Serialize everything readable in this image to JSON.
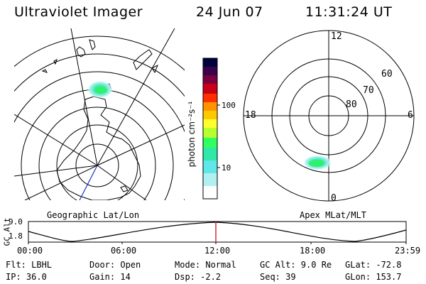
{
  "header": {
    "title": "Ultraviolet Imager",
    "date": "24 Jun 07",
    "time": "11:31:24 UT"
  },
  "geo_map": {
    "label": "Geographic Lat/Lon"
  },
  "polar_map": {
    "label": "Apex MLat/MLT",
    "mlt_labels": [
      "12",
      "18",
      "6",
      "0"
    ],
    "mlat_labels": [
      "60",
      "70",
      "80"
    ]
  },
  "colorbar": {
    "unit_label": "photon cm⁻²s⁻¹",
    "ticks": [
      "100",
      "10"
    ],
    "colors": [
      "#000040",
      "#3b004a",
      "#7b0040",
      "#c80018",
      "#ff3000",
      "#ff9400",
      "#ffc800",
      "#ffff30",
      "#b8ff30",
      "#30ff60",
      "#30e8a8",
      "#60e8e8",
      "#b0f0f0",
      "#ffffff"
    ]
  },
  "timeline": {
    "axis_label": "GC Alt",
    "y_ticks": [
      "9.0",
      "1.8"
    ],
    "x_ticks": [
      "00:00",
      "06:00",
      "12:00",
      "18:00",
      "23:59"
    ],
    "current_time_marker": "11:31:24",
    "marker_color": "#d01010"
  },
  "status": {
    "filter": "Flt: LBHL",
    "ip": "IP: 36.0",
    "door": "Door: Open",
    "gain": "Gain: 14",
    "mode": "Mode: Normal",
    "dsp": "Dsp:    -2.2",
    "gc_alt": "GC Alt: 9.0 Re",
    "seq": "Seq: 39",
    "glat": "GLat: -72.8",
    "glon": "GLon: 153.7"
  }
}
